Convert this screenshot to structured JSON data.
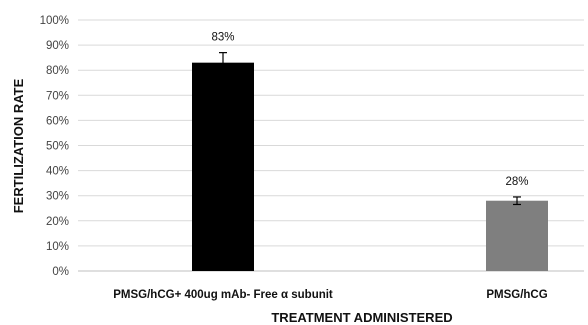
{
  "chart_data": {
    "type": "bar",
    "categories": [
      "PMSG/hCG+ 400ug mAb- Free α subunit",
      "PMSG/hCG"
    ],
    "values": [
      83,
      28
    ],
    "errors": [
      4,
      1.5
    ],
    "data_labels": [
      "83%",
      "28%"
    ],
    "bar_colors": [
      "#000000",
      "#7f7f7f"
    ],
    "xlabel": "TREATMENT ADMINISTERED",
    "ylabel": "FERTILIZATION RATE",
    "ylim": [
      0,
      100
    ],
    "yticks": [
      0,
      10,
      20,
      30,
      40,
      50,
      60,
      70,
      80,
      90,
      100
    ],
    "ytick_labels": [
      "0%",
      "10%",
      "20%",
      "30%",
      "40%",
      "50%",
      "60%",
      "70%",
      "80%",
      "90%",
      "100%"
    ],
    "grid": true,
    "gridline_color": "#d9d9d9",
    "legend": "none"
  }
}
